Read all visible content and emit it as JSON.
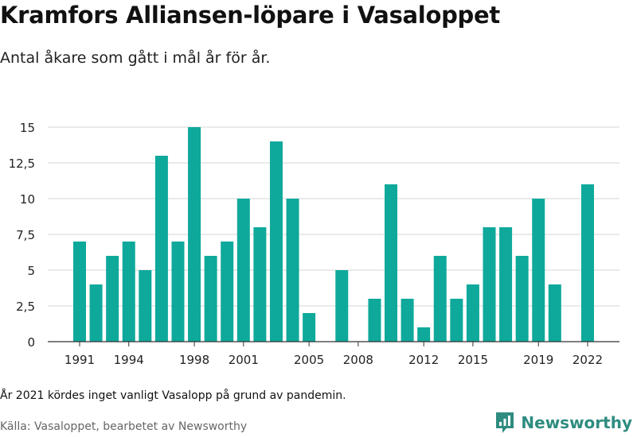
{
  "header": {
    "title": "Kramfors Alliansen-löpare i Vasaloppet",
    "subtitle": "Antal åkare som gått i mål år för år."
  },
  "footer": {
    "note": "År 2021 kördes inget vanligt Vasalopp på grund av pandemin.",
    "source": "Källa: Vasaloppet, bearbetet av Newsworthy",
    "brand": "Newsworthy"
  },
  "colors": {
    "bar": "#0ea99b",
    "grid": "#d6d6d6",
    "axis": "#333333",
    "brand": "#2e8c80"
  },
  "chart_data": {
    "type": "bar",
    "categories": [
      1991,
      1992,
      1993,
      1994,
      1995,
      1996,
      1997,
      1998,
      1999,
      2000,
      2001,
      2002,
      2003,
      2004,
      2005,
      2006,
      2007,
      2008,
      2009,
      2010,
      2011,
      2012,
      2013,
      2014,
      2015,
      2016,
      2017,
      2018,
      2019,
      2020,
      2021,
      2022
    ],
    "values": [
      7,
      4,
      6,
      7,
      5,
      13,
      7,
      15,
      6,
      7,
      10,
      8,
      14,
      10,
      2,
      0,
      5,
      0,
      3,
      11,
      3,
      1,
      6,
      3,
      4,
      8,
      8,
      6,
      10,
      4,
      null,
      11
    ],
    "x_tick_labels": [
      "1991",
      "1994",
      "1998",
      "2001",
      "2005",
      "2008",
      "2012",
      "2015",
      "2019",
      "2022"
    ],
    "y_ticks": [
      0,
      2.5,
      5,
      7.5,
      10,
      12.5,
      15
    ],
    "y_tick_labels": [
      "0",
      "2,5",
      "5",
      "7,5",
      "10",
      "12,5",
      "15"
    ],
    "ylim": [
      0,
      15
    ],
    "grid": true
  }
}
